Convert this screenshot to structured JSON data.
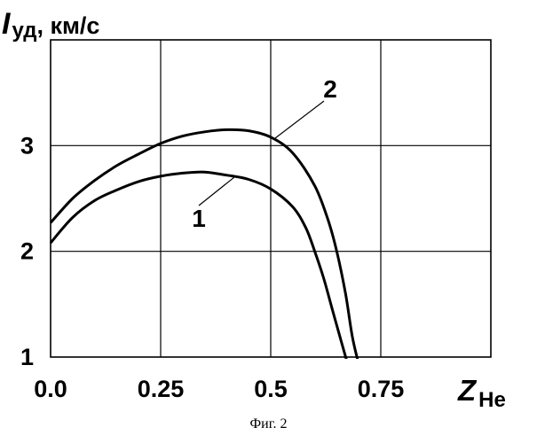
{
  "chart_data": {
    "type": "line",
    "ylabel": {
      "symbol": "I",
      "subscript": "уд",
      "unit": ", км/с"
    },
    "xlabel": {
      "symbol": "Z",
      "subscript": "He"
    },
    "xlim": [
      0,
      1
    ],
    "ylim": [
      1,
      4
    ],
    "x_ticks": [
      0,
      0.25,
      0.5,
      0.75
    ],
    "x_tick_labels": [
      "0.0",
      "0.25",
      "0.5",
      "0.75"
    ],
    "y_ticks": [
      1,
      2,
      3
    ],
    "y_tick_labels": [
      "1",
      "2",
      "3"
    ],
    "grid": true,
    "series": [
      {
        "name": "1",
        "x": [
          0,
          0.05,
          0.1,
          0.15,
          0.2,
          0.25,
          0.3,
          0.35,
          0.4,
          0.45,
          0.5,
          0.55,
          0.58,
          0.6,
          0.62,
          0.64,
          0.66,
          0.675
        ],
        "y": [
          2.08,
          2.32,
          2.48,
          2.58,
          2.66,
          2.71,
          2.74,
          2.75,
          2.72,
          2.68,
          2.59,
          2.42,
          2.22,
          2.0,
          1.75,
          1.45,
          1.15,
          0.93
        ]
      },
      {
        "name": "2",
        "x": [
          0,
          0.05,
          0.1,
          0.15,
          0.2,
          0.25,
          0.3,
          0.35,
          0.4,
          0.45,
          0.5,
          0.55,
          0.6,
          0.63,
          0.65,
          0.67,
          0.685,
          0.7
        ],
        "y": [
          2.27,
          2.5,
          2.67,
          2.81,
          2.92,
          3.02,
          3.09,
          3.13,
          3.15,
          3.14,
          3.08,
          2.93,
          2.62,
          2.3,
          2.0,
          1.6,
          1.2,
          0.93
        ]
      }
    ]
  },
  "caption": "Фиг. 2"
}
